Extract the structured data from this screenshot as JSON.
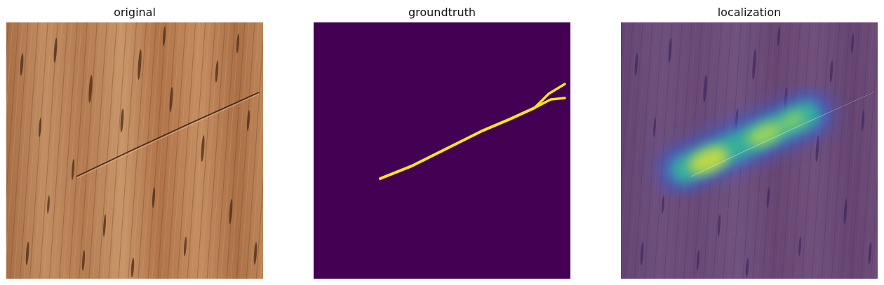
{
  "figure": {
    "panels": [
      {
        "title": "original",
        "image": "wood-texture-with-crack"
      },
      {
        "title": "groundtruth",
        "image": "binary-crack-mask"
      },
      {
        "title": "localization",
        "image": "heatmap-overlay-on-wood"
      }
    ],
    "colors": {
      "wood_light": "#c08a5e",
      "wood_dark": "#6b4026",
      "mask_background": "#440154",
      "mask_foreground": "#f2e51f",
      "heat_low": "#3b2a8c",
      "heat_mid": "#35b79a",
      "heat_high": "#e3e23a"
    }
  }
}
